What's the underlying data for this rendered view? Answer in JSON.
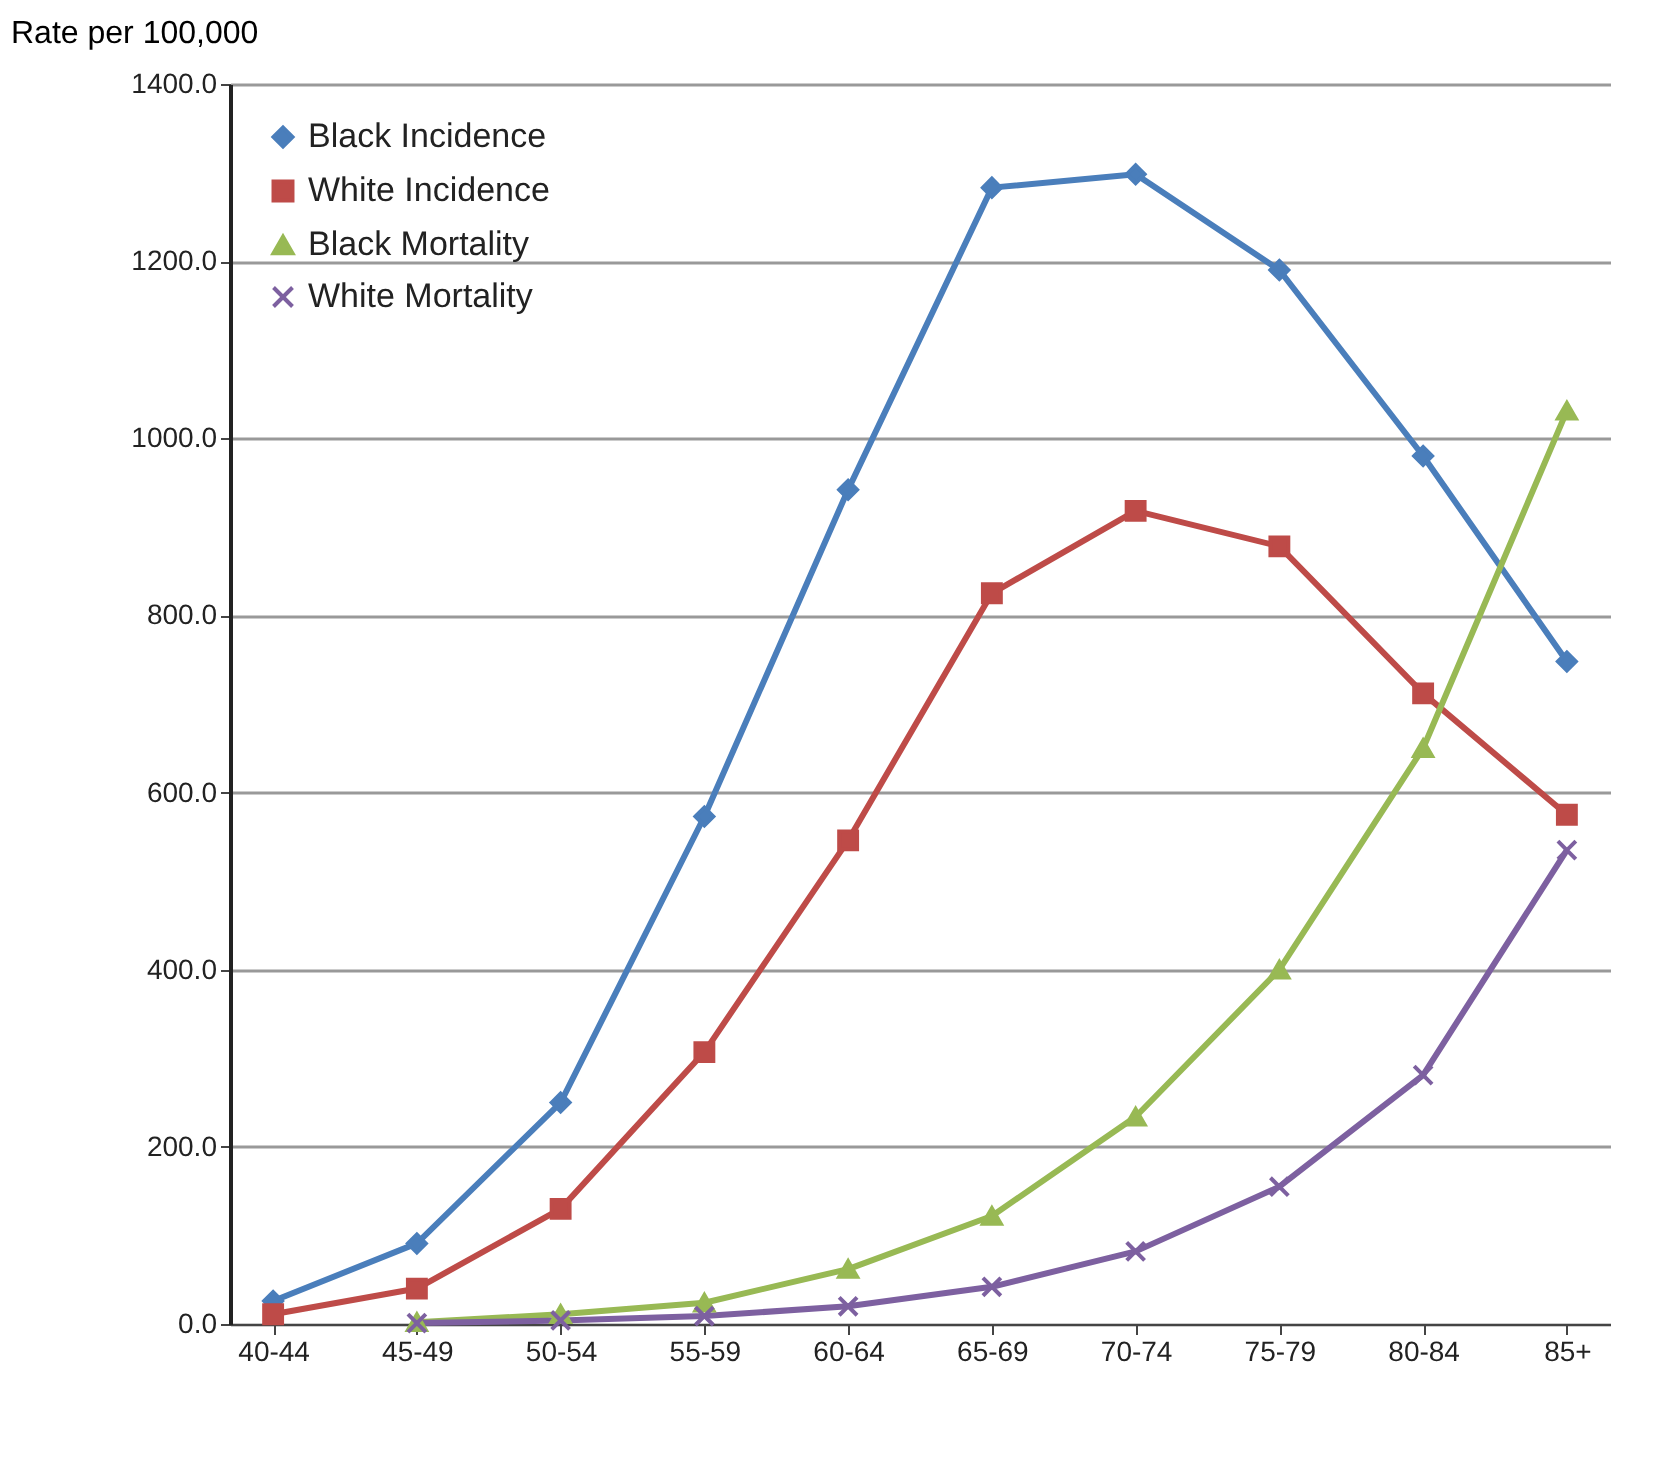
{
  "chart_data": {
    "type": "line",
    "ylabel": "Rate per 100,000",
    "categories": [
      "40-44",
      "45-49",
      "50-54",
      "55-59",
      "60-64",
      "65-69",
      "70-74",
      "75-79",
      "80-84",
      "85+"
    ],
    "series": [
      {
        "name": "Black Incidence",
        "color": "#4a7ebb",
        "marker": "diamond",
        "values": [
          26,
          91,
          250,
          573,
          942,
          1283,
          1298,
          1190,
          980,
          748
        ]
      },
      {
        "name": "White Incidence",
        "color": "#be4b48",
        "marker": "square",
        "values": [
          11,
          40,
          130,
          307,
          546,
          825,
          918,
          878,
          712,
          575
        ]
      },
      {
        "name": "Black Mortality",
        "color": "#98b954",
        "marker": "triangle",
        "values": [
          null,
          2,
          11,
          24,
          62,
          122,
          234,
          400,
          650,
          1031
        ]
      },
      {
        "name": "White Mortality",
        "color": "#7d60a0",
        "marker": "cross",
        "values": [
          null,
          1,
          4,
          9,
          20,
          42,
          82,
          155,
          281,
          535
        ]
      }
    ],
    "ylim": [
      0,
      1400
    ],
    "yticks": [
      {
        "value": 0,
        "label": "0.0"
      },
      {
        "value": 200,
        "label": "200.0"
      },
      {
        "value": 400,
        "label": "400.0"
      },
      {
        "value": 600,
        "label": "600.0"
      },
      {
        "value": 800,
        "label": "800.0"
      },
      {
        "value": 1000,
        "label": "1000.0"
      },
      {
        "value": 1200,
        "label": "1200.0"
      },
      {
        "value": 1400,
        "label": "1400.0"
      }
    ],
    "grid": "y",
    "legend": "top left",
    "line_style": "solid"
  }
}
